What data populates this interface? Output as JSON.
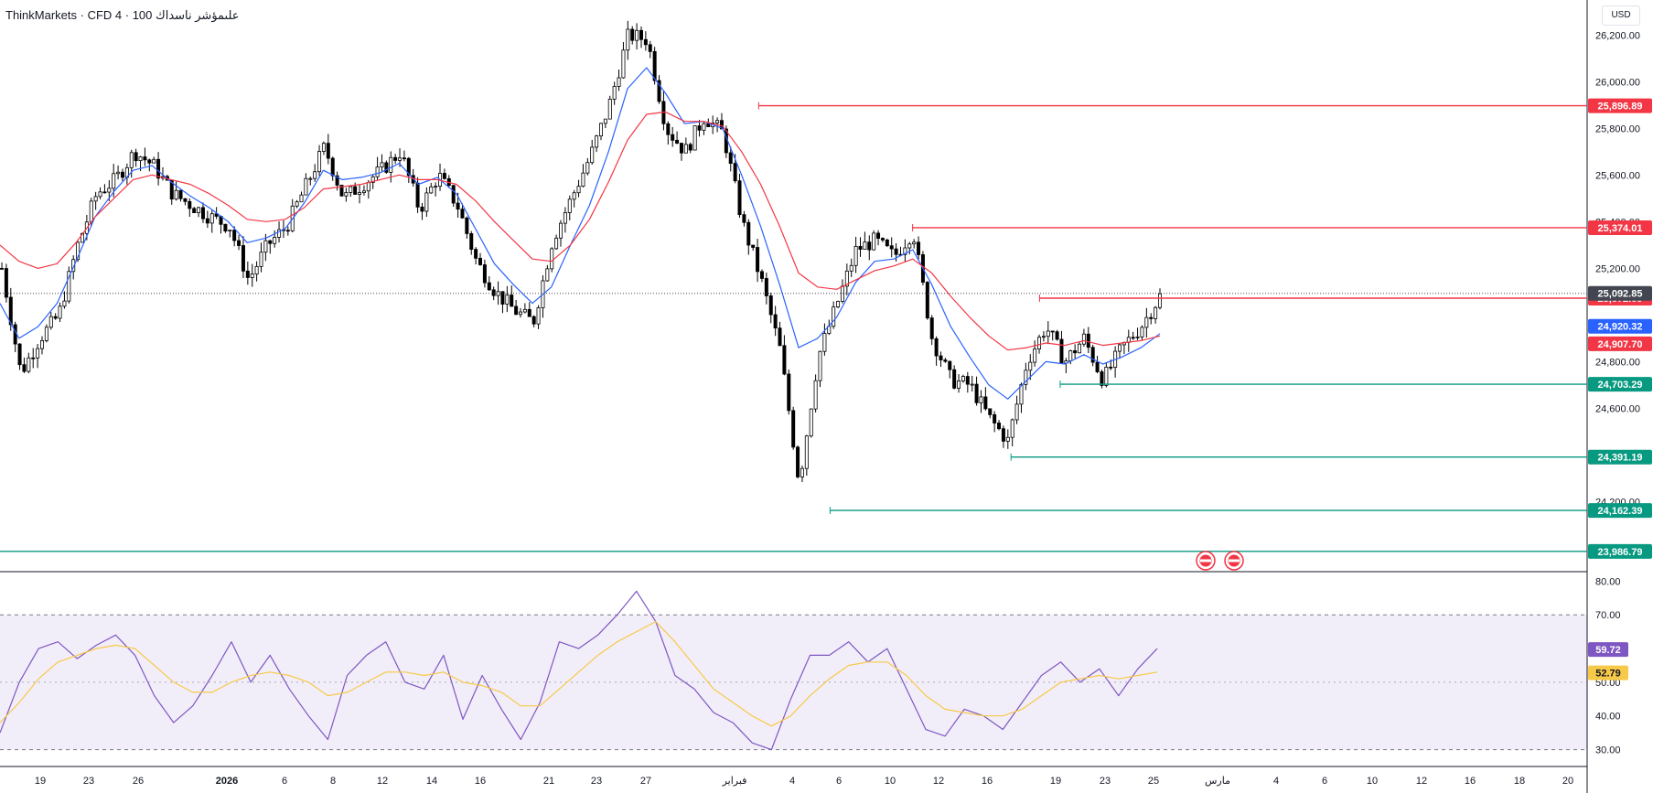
{
  "header": {
    "title": "ThinkMarkets · CFD علىمؤشر ناسداك 100 · 4"
  },
  "currency_button": {
    "label": "USD"
  },
  "colors": {
    "up_candle": "#ffffff",
    "down_candle": "#000000",
    "ma_fast": "#2962ff",
    "ma_slow": "#f23645",
    "resistance": "#f23645",
    "support": "#089981",
    "rsi_line": "#7e57c2",
    "rsi_ma": "#f7c948",
    "rsi_band": "#7e57c2",
    "last_price": "#434651"
  },
  "chart_data": [
    {
      "type": "candlestick",
      "title": "CFD علىمؤشر ناسداك 100",
      "ylim": [
        23900,
        26350
      ],
      "y_ticks": [
        "26,200.00",
        "26,000.00",
        "25,800.00",
        "25,600.00",
        "25,400.00",
        "25,200.00",
        "24,800.00",
        "24,600.00",
        "24,200.00"
      ],
      "x_ticks": [
        "19",
        "23",
        "26",
        "2026",
        "6",
        "8",
        "12",
        "14",
        "16",
        "21",
        "23",
        "27",
        "فبراير",
        "4",
        "6",
        "10",
        "12",
        "16",
        "19",
        "23",
        "25",
        "مارس",
        "4",
        "6",
        "10",
        "12",
        "16",
        "18",
        "20"
      ],
      "price_path": [
        25200,
        24750,
        24900,
        25000,
        25300,
        25520,
        25580,
        25700,
        25640,
        25520,
        25470,
        25420,
        25380,
        25150,
        25300,
        25380,
        25550,
        25720,
        25500,
        25560,
        25620,
        25700,
        25450,
        25600,
        25470,
        25230,
        25100,
        25020,
        24970,
        25320,
        25500,
        25680,
        25900,
        26200,
        26180,
        25800,
        25700,
        25850,
        25780,
        25400,
        25150,
        24850,
        24280,
        24820,
        25050,
        25280,
        25320,
        25250,
        25360,
        24900,
        24720,
        24700,
        24560,
        24460,
        24800,
        24950,
        24800,
        24900,
        24720,
        24860,
        24950,
        25080
      ],
      "moving_averages": [
        {
          "name": "",
          "color": "#2962ff",
          "values": [
            25050,
            24900,
            24950,
            25050,
            25230,
            25420,
            25530,
            25620,
            25640,
            25570,
            25510,
            25460,
            25400,
            25310,
            25330,
            25370,
            25480,
            25620,
            25580,
            25590,
            25610,
            25650,
            25560,
            25590,
            25520,
            25370,
            25220,
            25130,
            25050,
            25120,
            25300,
            25470,
            25700,
            25970,
            26060,
            25950,
            25820,
            25830,
            25800,
            25600,
            25380,
            25130,
            24860,
            24900,
            24990,
            25140,
            25230,
            25240,
            25280,
            25130,
            24950,
            24820,
            24700,
            24640,
            24720,
            24800,
            24790,
            24830,
            24790,
            24820,
            24860,
            24920
          ]
        },
        {
          "name": "",
          "color": "#f23645",
          "values": [
            25300,
            25230,
            25200,
            25220,
            25310,
            25420,
            25500,
            25580,
            25600,
            25580,
            25560,
            25520,
            25470,
            25410,
            25400,
            25410,
            25460,
            25540,
            25550,
            25560,
            25580,
            25600,
            25580,
            25580,
            25560,
            25490,
            25400,
            25320,
            25240,
            25230,
            25300,
            25410,
            25570,
            25750,
            25860,
            25870,
            25830,
            25830,
            25810,
            25700,
            25560,
            25380,
            25180,
            25120,
            25110,
            25150,
            25190,
            25210,
            25240,
            25180,
            25080,
            24990,
            24910,
            24850,
            24860,
            24880,
            24870,
            24890,
            24870,
            24880,
            24890,
            24910
          ]
        }
      ],
      "horizontal_levels": [
        {
          "value": 25896.89,
          "label": "25,896.89",
          "kind": "resistance",
          "start": 0.478
        },
        {
          "value": 25374.01,
          "label": "25,374.01",
          "kind": "resistance",
          "start": 0.575
        },
        {
          "value": 25072.09,
          "label": "25,072.09",
          "kind": "resistance",
          "start": 0.655
        },
        {
          "value": 24703.29,
          "label": "24,703.29",
          "kind": "support",
          "start": 0.668
        },
        {
          "value": 24391.19,
          "label": "24,391.19",
          "kind": "support",
          "start": 0.637
        },
        {
          "value": 24162.39,
          "label": "24,162.39",
          "kind": "support",
          "start": 0.523
        },
        {
          "value": 23986.79,
          "label": "23,986.79",
          "kind": "support",
          "start": 0.0
        }
      ],
      "last_price": {
        "value": 25092.85,
        "label": "25,092.85"
      },
      "ma_labels": [
        {
          "value": 24920.32,
          "label": "24,920.32",
          "color": "#2962ff"
        },
        {
          "value": 24907.7,
          "label": "24,907.70",
          "color": "#f23645"
        }
      ],
      "event_markers": 2,
      "grid": false
    },
    {
      "type": "line",
      "title": "",
      "ylim": [
        25,
        82
      ],
      "y_ticks": [
        "80.00",
        "70.00",
        "50.00",
        "40.00",
        "30.00"
      ],
      "band": [
        30,
        70
      ],
      "midline": 50,
      "series": [
        {
          "name": "",
          "color": "#7e57c2",
          "values": [
            35,
            50,
            60,
            62,
            57,
            61,
            64,
            58,
            46,
            38,
            43,
            52,
            62,
            50,
            58,
            48,
            40,
            33,
            52,
            58,
            62,
            50,
            48,
            58,
            39,
            52,
            42,
            33,
            44,
            62,
            60,
            64,
            70,
            77,
            68,
            52,
            48,
            41,
            38,
            32,
            30,
            45,
            58,
            58,
            62,
            56,
            60,
            48,
            36,
            34,
            42,
            40,
            36,
            44,
            52,
            56,
            50,
            54,
            46,
            54,
            60
          ]
        },
        {
          "name": "",
          "color": "#f7c948",
          "values": [
            38,
            44,
            51,
            56,
            58,
            60,
            61,
            60,
            55,
            50,
            47,
            47,
            50,
            52,
            53,
            52,
            50,
            46,
            47,
            50,
            53,
            53,
            52,
            53,
            50,
            49,
            47,
            43,
            43,
            48,
            53,
            58,
            62,
            65,
            68,
            62,
            55,
            48,
            44,
            40,
            37,
            40,
            46,
            51,
            55,
            56,
            56,
            52,
            46,
            42,
            41,
            40,
            40,
            42,
            46,
            50,
            51,
            52,
            51,
            52,
            53
          ]
        }
      ],
      "values_labels": [
        {
          "value": 59.72,
          "label": "59.72",
          "color": "#7e57c2"
        },
        {
          "value": 52.79,
          "label": "52.79",
          "color": "#f7c948"
        }
      ]
    }
  ]
}
